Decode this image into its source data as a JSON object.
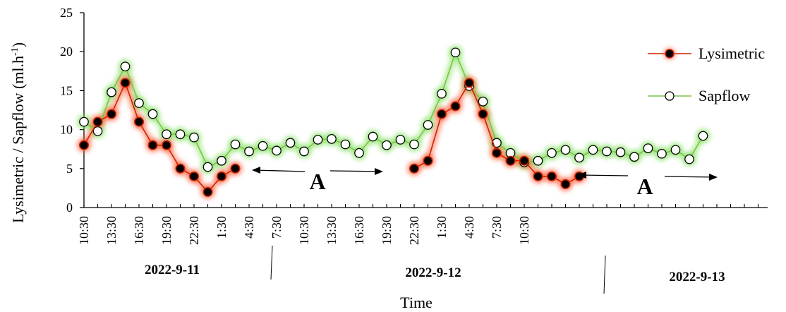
{
  "chart_data": {
    "type": "line",
    "xlabel": "Time",
    "ylabel": "Lysimetric / Sapflow (ml.h",
    "ylabel_superscript": "-1",
    "ylabel_suffix": ")",
    "ylim": [
      0,
      25
    ],
    "yticks": [
      0,
      5,
      10,
      15,
      20,
      25
    ],
    "xticks": [
      "10:30",
      "13:30",
      "16:30",
      "19:30",
      "22:30",
      "1:30",
      "4:30",
      "7:30",
      "10:30",
      "13:30",
      "16:30",
      "19:30",
      "22:30",
      "1:30",
      "4:30",
      "7:30",
      "10:30"
    ],
    "dates": [
      "2022-9-11",
      "2022-9-12",
      "2022-9-13"
    ],
    "annotations": [
      "A",
      "A"
    ],
    "legend_position": "right",
    "grid": false,
    "series": [
      {
        "name": "Lysimetric",
        "color": "#cc2200",
        "marker_fill": "#000000",
        "glow": "#ff5a36",
        "segments": [
          [
            [
              0,
              8
            ],
            [
              1,
              11
            ],
            [
              2,
              12
            ],
            [
              3,
              16
            ],
            [
              4,
              11
            ],
            [
              5,
              8
            ],
            [
              6,
              8
            ],
            [
              7,
              5
            ],
            [
              8,
              4
            ],
            [
              9,
              2
            ],
            [
              10,
              4
            ],
            [
              11,
              5
            ]
          ],
          [
            [
              24,
              5
            ],
            [
              25,
              6
            ],
            [
              26,
              12
            ],
            [
              27,
              13
            ],
            [
              28,
              16
            ],
            [
              29,
              12
            ],
            [
              30,
              7
            ],
            [
              31,
              6
            ],
            [
              32,
              6
            ],
            [
              33,
              4
            ],
            [
              34,
              4
            ],
            [
              35,
              3
            ],
            [
              36,
              4
            ]
          ]
        ]
      },
      {
        "name": "Sapflow",
        "color": "#7fc145",
        "marker_fill": "#ffffff",
        "glow": "#7ee05a",
        "segments": [
          [
            [
              0,
              11
            ],
            [
              1,
              9.8
            ],
            [
              2,
              14.8
            ],
            [
              3,
              18.1
            ],
            [
              4,
              13.4
            ],
            [
              5,
              12
            ],
            [
              6,
              9.4
            ],
            [
              7,
              9.4
            ],
            [
              8,
              9
            ],
            [
              9,
              5.2
            ],
            [
              10,
              6
            ],
            [
              11,
              8.1
            ],
            [
              12,
              7.2
            ],
            [
              13,
              7.9
            ],
            [
              14,
              7.3
            ],
            [
              15,
              8.3
            ],
            [
              16,
              7.2
            ],
            [
              17,
              8.7
            ],
            [
              18,
              8.8
            ],
            [
              19,
              8.1
            ],
            [
              20,
              7
            ],
            [
              21,
              9.1
            ],
            [
              22,
              8
            ],
            [
              23,
              8.7
            ],
            [
              24,
              8.1
            ],
            [
              25,
              10.6
            ],
            [
              26,
              14.6
            ],
            [
              27,
              19.9
            ],
            [
              28,
              15.6
            ],
            [
              29,
              13.6
            ],
            [
              30,
              8.3
            ],
            [
              31,
              7
            ],
            [
              32,
              5.8
            ],
            [
              33,
              6
            ],
            [
              34,
              7
            ],
            [
              35,
              7.4
            ],
            [
              36,
              6.4
            ],
            [
              37,
              7.4
            ],
            [
              38,
              7.2
            ],
            [
              39,
              7.1
            ],
            [
              40,
              6.5
            ],
            [
              41,
              7.6
            ],
            [
              42,
              6.9
            ],
            [
              43,
              7.4
            ],
            [
              44,
              6.2
            ],
            [
              45,
              9.2
            ]
          ]
        ]
      }
    ]
  }
}
